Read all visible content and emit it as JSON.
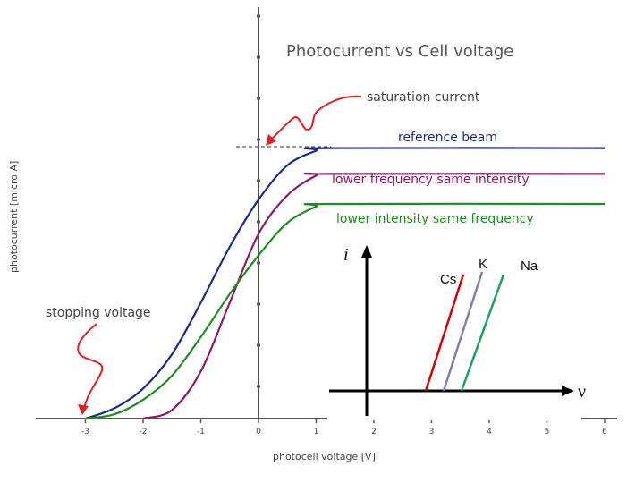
{
  "chart_data": [
    {
      "type": "line",
      "title": "Photocurrent vs Cell voltage",
      "xlabel": "photocell voltage [V]",
      "ylabel": "photocurrent [micro A]",
      "xlim": [
        -4.3,
        6.2
      ],
      "ylim": [
        0,
        3.25
      ],
      "x_ticks": [
        "-3",
        "-2",
        "-1",
        "0",
        "1",
        "2",
        "3",
        "4",
        "5",
        "6"
      ],
      "series": [
        {
          "name": "reference beam",
          "color": "#1c2a86",
          "x": [
            -3,
            -2.5,
            -2,
            -1.5,
            -1,
            -0.5,
            0,
            0.5,
            1,
            1.2,
            6
          ],
          "y": [
            0,
            0.12,
            0.35,
            0.75,
            1.35,
            2.0,
            2.55,
            2.95,
            3.12,
            3.15,
            3.15
          ]
        },
        {
          "name": "lower frequency same intensity",
          "color": "#8e1b60",
          "x": [
            -2,
            -1.5,
            -1,
            -0.5,
            0,
            0.5,
            1,
            1.2,
            6
          ],
          "y": [
            0,
            0.1,
            0.55,
            1.35,
            2.15,
            2.6,
            2.83,
            2.85,
            2.85
          ]
        },
        {
          "name": "lower intensity same frequency",
          "color": "#1e8c1e",
          "x": [
            -3,
            -2.5,
            -2,
            -1.5,
            -1,
            -0.5,
            0,
            0.5,
            1,
            1.2,
            6
          ],
          "y": [
            0,
            0.05,
            0.22,
            0.5,
            0.95,
            1.45,
            1.9,
            2.28,
            2.47,
            2.5,
            2.5
          ]
        }
      ],
      "annotations": [
        "saturation current",
        "stopping voltage"
      ]
    },
    {
      "type": "line",
      "xlabel": "ν",
      "ylabel": "i",
      "series": [
        {
          "name": "Cs",
          "color": "#d00000"
        },
        {
          "name": "K",
          "color": "#8a7aa8"
        },
        {
          "name": "Na",
          "color": "#1aa060"
        }
      ]
    }
  ]
}
